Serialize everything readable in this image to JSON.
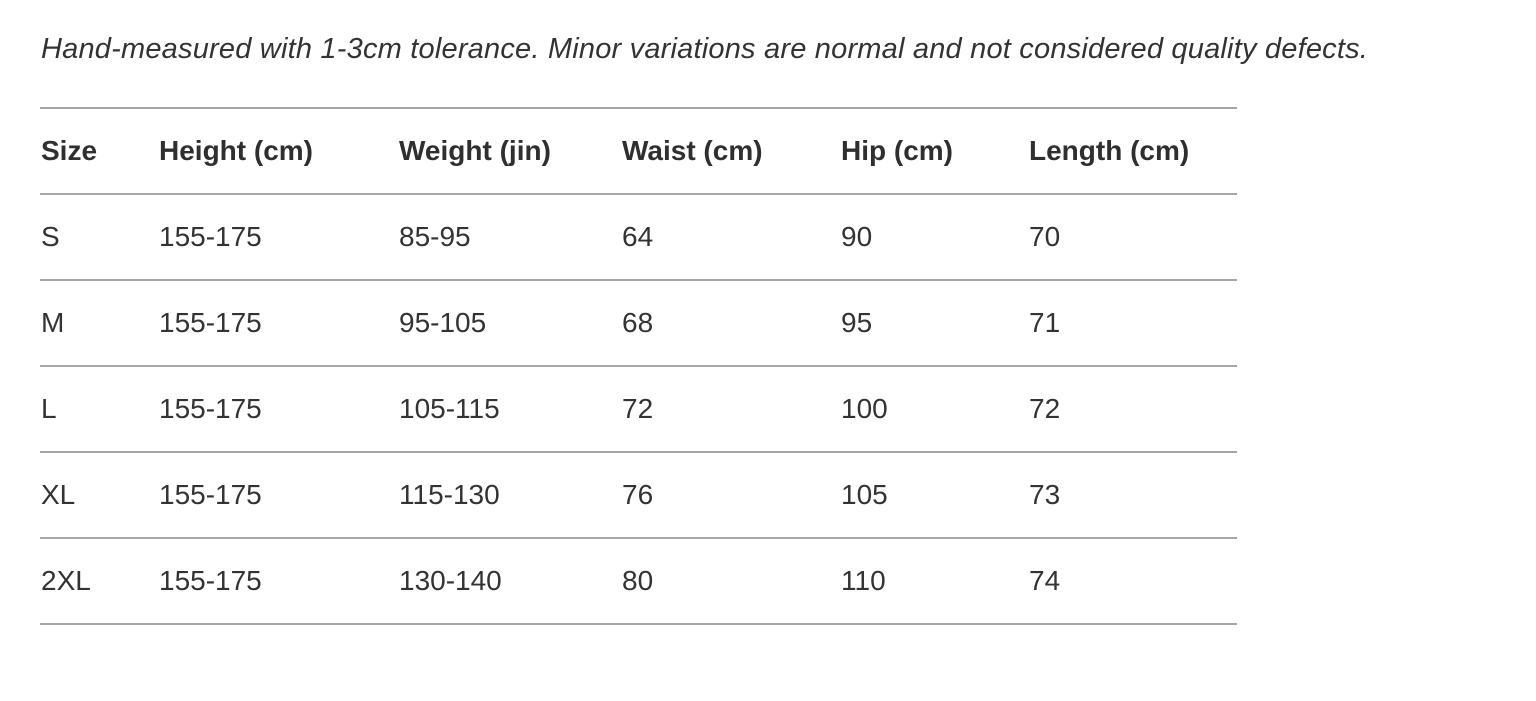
{
  "note": "Hand-measured with 1-3cm tolerance. Minor variations are normal and not considered quality defects.",
  "table": {
    "columns": [
      "Size",
      "Height (cm)",
      "Weight (jin)",
      "Waist (cm)",
      "Hip (cm)",
      "Length (cm)"
    ],
    "rows": [
      [
        "S",
        "155-175",
        "85-95",
        "64",
        "90",
        "70"
      ],
      [
        "M",
        "155-175",
        "95-105",
        "68",
        "95",
        "71"
      ],
      [
        "L",
        "155-175",
        "105-115",
        "72",
        "100",
        "72"
      ],
      [
        "XL",
        "155-175",
        "115-130",
        "76",
        "105",
        "73"
      ],
      [
        "2XL",
        "155-175",
        "130-140",
        "80",
        "110",
        "74"
      ]
    ]
  },
  "colors": {
    "text": "#333333",
    "line": "#a5a5a5",
    "background": "#ffffff"
  }
}
